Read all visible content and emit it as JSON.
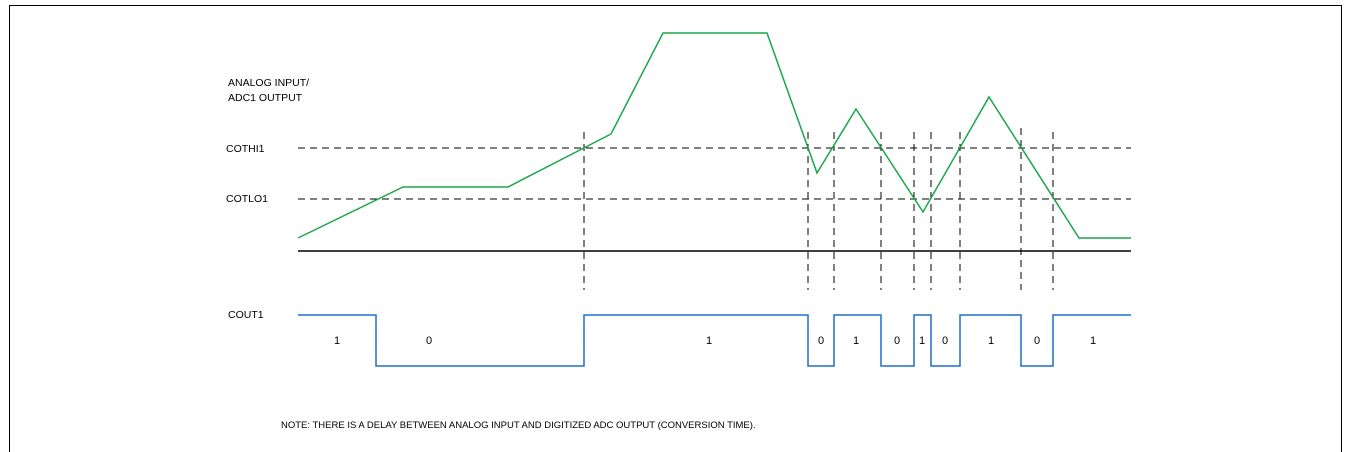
{
  "labels": {
    "analog_line1": "ANALOG INPUT/",
    "analog_line2": "ADC1 OUTPUT",
    "cothi": "COTHI1",
    "cotlo": "COTLO1",
    "cout": "COUT1"
  },
  "bits": [
    "1",
    "0",
    "1",
    "0",
    "1",
    "0",
    "1",
    "0",
    "1",
    "0",
    "1"
  ],
  "note": "NOTE: THERE IS A DELAY BETWEEN ANALOG INPUT AND DIGITIZED ADC OUTPUT (CONVERSION TIME).",
  "colors": {
    "analog_trace": "#1aa64a",
    "digital_trace": "#1f6fd1",
    "axis": "#000000"
  }
}
